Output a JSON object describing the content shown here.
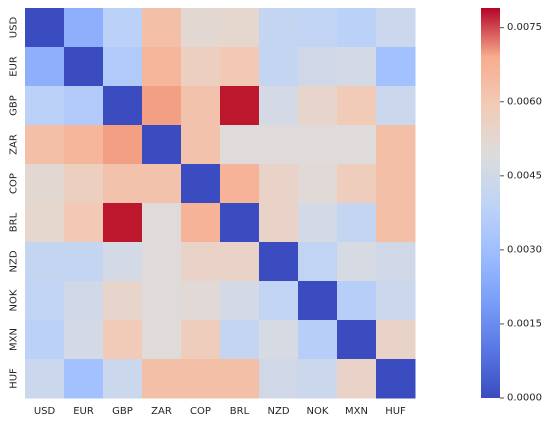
{
  "chart_data": {
    "type": "heatmap",
    "title": "",
    "xlabel": "",
    "ylabel": "",
    "x_categories": [
      "USD",
      "EUR",
      "GBP",
      "ZAR",
      "COP",
      "BRL",
      "NZD",
      "NOK",
      "MXN",
      "HUF"
    ],
    "y_categories": [
      "USD",
      "EUR",
      "GBP",
      "ZAR",
      "COP",
      "BRL",
      "NZD",
      "NOK",
      "MXN",
      "HUF"
    ],
    "values": [
      [
        0.0,
        0.0025,
        0.0038,
        0.0063,
        0.0052,
        0.0053,
        0.0041,
        0.004,
        0.0038,
        0.0043
      ],
      [
        0.0025,
        0.0,
        0.0035,
        0.0066,
        0.0057,
        0.006,
        0.0041,
        0.0045,
        0.0046,
        0.0031
      ],
      [
        0.0038,
        0.0035,
        0.0,
        0.007,
        0.0062,
        0.0078,
        0.0046,
        0.0054,
        0.0059,
        0.0043
      ],
      [
        0.0063,
        0.0066,
        0.007,
        0.0,
        0.0062,
        0.005,
        0.005,
        0.005,
        0.005,
        0.0063
      ],
      [
        0.0052,
        0.0057,
        0.0062,
        0.0062,
        0.0,
        0.0067,
        0.0055,
        0.0051,
        0.0058,
        0.0063
      ],
      [
        0.0053,
        0.006,
        0.0078,
        0.005,
        0.0067,
        0.0,
        0.0055,
        0.0046,
        0.0041,
        0.0063
      ],
      [
        0.0041,
        0.0041,
        0.0046,
        0.005,
        0.0055,
        0.0055,
        0.0,
        0.004,
        0.0047,
        0.0045
      ],
      [
        0.004,
        0.0045,
        0.0054,
        0.005,
        0.0051,
        0.0046,
        0.004,
        0.0,
        0.0037,
        0.0043
      ],
      [
        0.0038,
        0.0046,
        0.0059,
        0.005,
        0.0058,
        0.0041,
        0.0047,
        0.0037,
        0.0,
        0.0055
      ],
      [
        0.0043,
        0.0031,
        0.0043,
        0.0063,
        0.0063,
        0.0063,
        0.0045,
        0.0043,
        0.0055,
        0.0
      ]
    ],
    "colorbar": {
      "colormap": "coolwarm",
      "vmin": 0.0,
      "vmax": 0.0079,
      "ticks": [
        0.0,
        0.0015,
        0.003,
        0.0045,
        0.006,
        0.0075
      ],
      "tick_labels": [
        "0.0000",
        "0.0015",
        "0.0030",
        "0.0045",
        "0.0060",
        "0.0075"
      ]
    },
    "grid": false,
    "legend": "colorbar-right"
  }
}
